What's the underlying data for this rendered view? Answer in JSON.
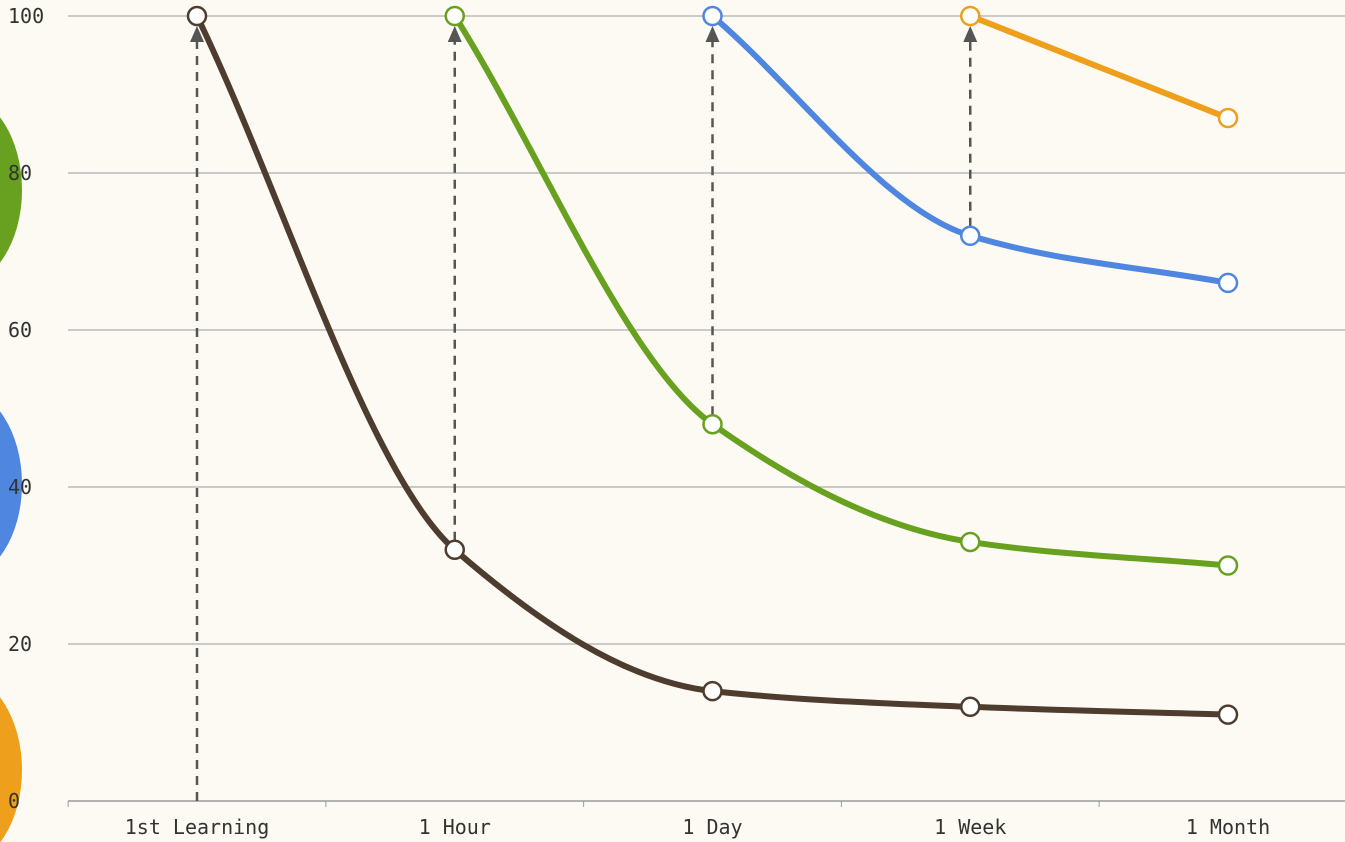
{
  "chart_data": {
    "type": "line",
    "title": "",
    "xlabel": "",
    "ylabel": "",
    "categories": [
      "1st Learning",
      "1 Hour",
      "1 Day",
      "1 Week",
      "1 Month"
    ],
    "ylim": [
      0,
      100
    ],
    "yticks": [
      0,
      20,
      40,
      60,
      80,
      100
    ],
    "grid": true,
    "legend": "none",
    "series": [
      {
        "color": "#4e3d2e",
        "values": [
          100,
          32,
          14,
          12,
          11
        ]
      },
      {
        "color": "#68a11f",
        "values": [
          null,
          100,
          48,
          33,
          30
        ]
      },
      {
        "color": "#4f86e0",
        "values": [
          null,
          null,
          100,
          72,
          66
        ]
      },
      {
        "color": "#ee9f1c",
        "values": [
          null,
          null,
          null,
          100,
          87
        ]
      }
    ],
    "reviews": [
      {
        "category": "1st Learning",
        "from": 0,
        "to": 100
      },
      {
        "category": "1 Hour",
        "from": 32,
        "to": 100
      },
      {
        "category": "1 Day",
        "from": 48,
        "to": 100
      },
      {
        "category": "1 Week",
        "from": 72,
        "to": 100
      }
    ]
  },
  "side_decorations": {
    "colors": [
      "#68a11f",
      "#4f86e0",
      "#ee9f1c"
    ]
  }
}
